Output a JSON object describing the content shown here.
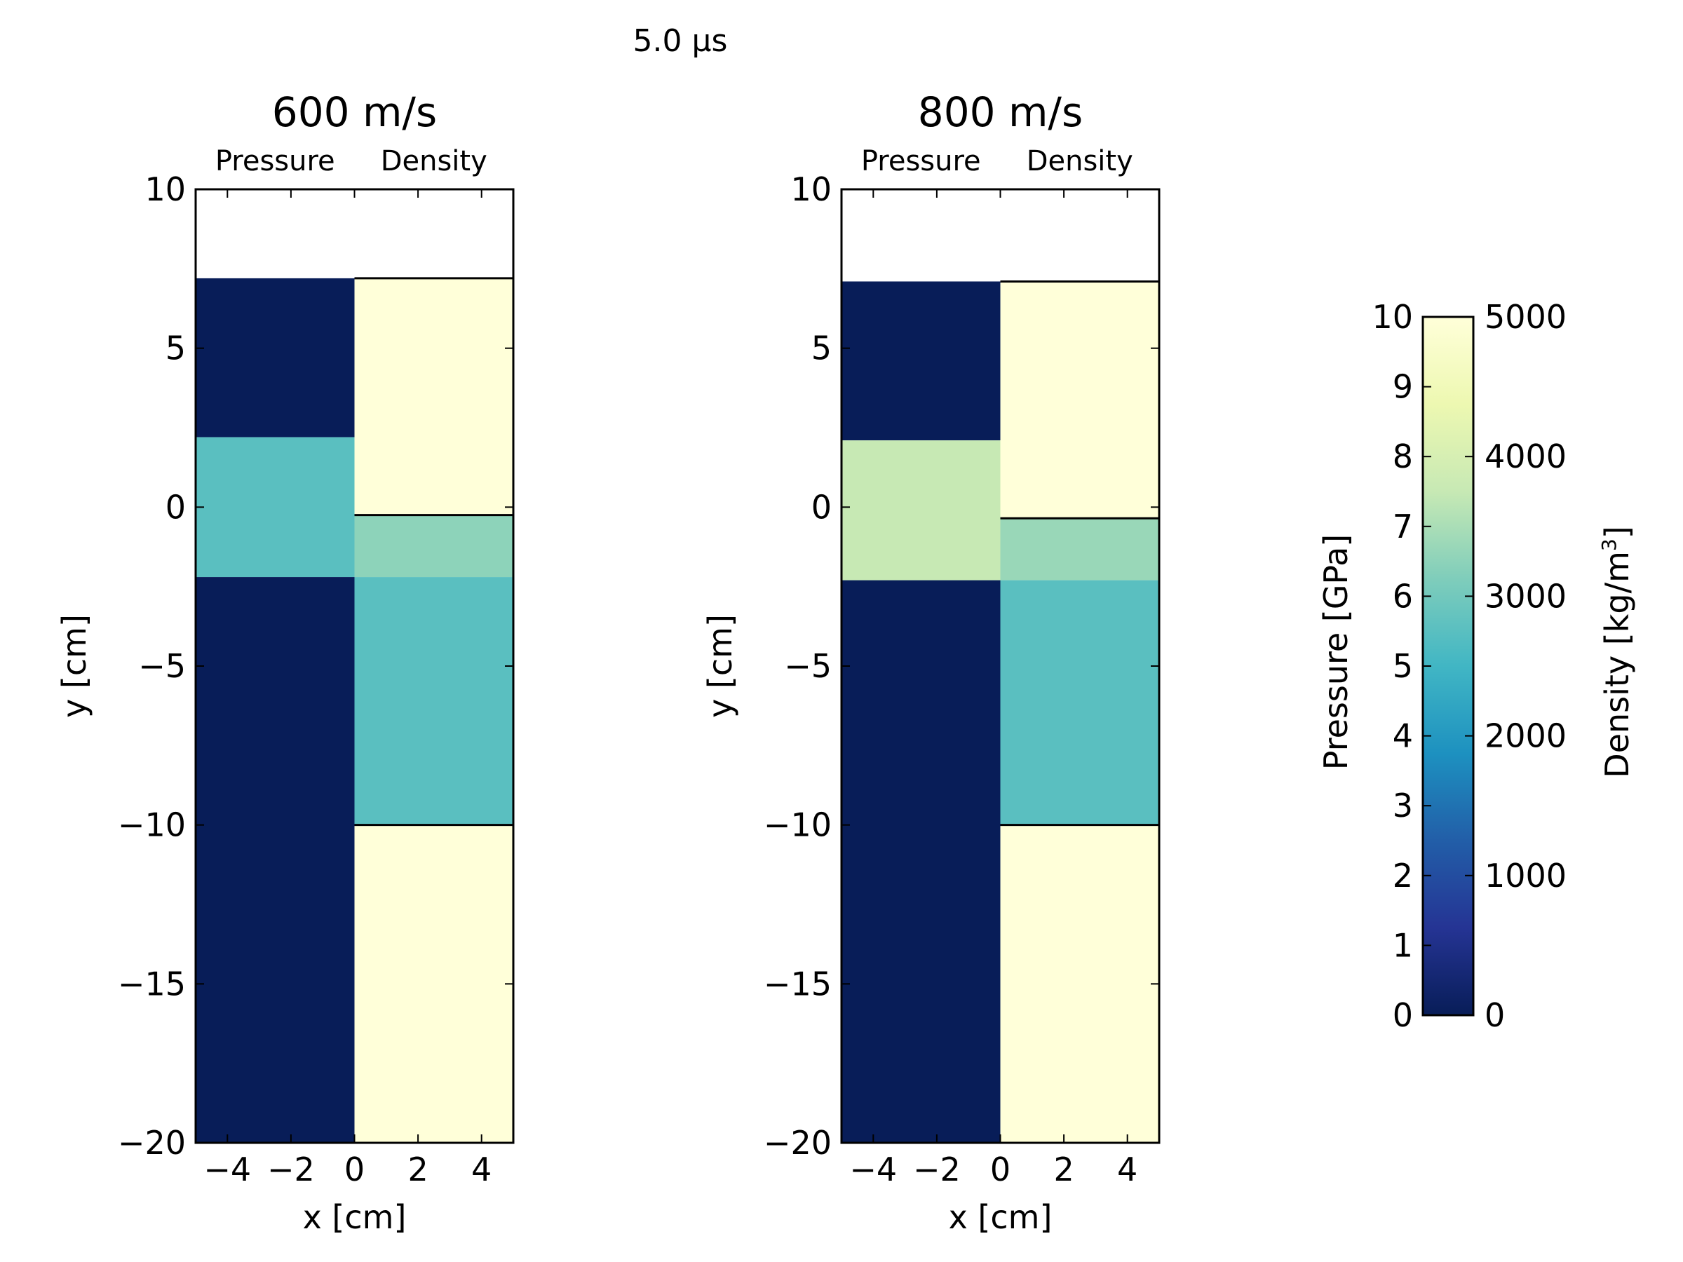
{
  "chart_data": {
    "type": "heatmap",
    "suptitle": "5.0 μs",
    "colormap": "YlGnBu_r",
    "colormap_stops": [
      "#081d58",
      "#253494",
      "#225ea8",
      "#1d91c0",
      "#41b6c4",
      "#7fcdbb",
      "#c7e9b4",
      "#edf8b1",
      "#ffffd9"
    ],
    "panels": [
      {
        "title": "600 m/s",
        "left_label": "Pressure",
        "right_label": "Density",
        "xlabel": "x [cm]",
        "ylabel": "y [cm]",
        "xlim": [
          -5,
          5
        ],
        "ylim": [
          -20,
          10
        ],
        "xticks": [
          -4,
          -2,
          0,
          2,
          4
        ],
        "xtick_labels": [
          "−4",
          "−2",
          "0",
          "2",
          "4"
        ],
        "yticks": [
          10,
          5,
          0,
          -5,
          -10,
          -15,
          -20
        ],
        "ytick_labels": [
          "10",
          "5",
          "0",
          "−5",
          "−10",
          "−15",
          "−20"
        ],
        "material_top": 7.2,
        "pressure_bands": [
          {
            "y0": 2.2,
            "y1": 7.2,
            "value": 0
          },
          {
            "y0": -2.2,
            "y1": 2.2,
            "value": 5.5
          },
          {
            "y0": -20,
            "y1": -2.2,
            "value": 0
          }
        ],
        "density_bands": [
          {
            "y0": -0.25,
            "y1": 7.2,
            "value": 5000
          },
          {
            "y0": -2.2,
            "y1": -0.25,
            "value": 3250
          },
          {
            "y0": -10,
            "y1": -2.2,
            "value": 2750
          },
          {
            "y0": -20,
            "y1": -10,
            "value": 5000
          }
        ],
        "density_boundaries": [
          7.2,
          -0.25,
          -10
        ]
      },
      {
        "title": "800 m/s",
        "left_label": "Pressure",
        "right_label": "Density",
        "xlabel": "x [cm]",
        "ylabel": "y [cm]",
        "xlim": [
          -5,
          5
        ],
        "ylim": [
          -20,
          10
        ],
        "xticks": [
          -4,
          -2,
          0,
          2,
          4
        ],
        "xtick_labels": [
          "−4",
          "−2",
          "0",
          "2",
          "4"
        ],
        "yticks": [
          10,
          5,
          0,
          -5,
          -10,
          -15,
          -20
        ],
        "ytick_labels": [
          "10",
          "5",
          "0",
          "−5",
          "−10",
          "−15",
          "−20"
        ],
        "material_top": 7.1,
        "pressure_bands": [
          {
            "y0": 2.1,
            "y1": 7.1,
            "value": 0
          },
          {
            "y0": -2.3,
            "y1": 2.1,
            "value": 7.5
          },
          {
            "y0": -20,
            "y1": -2.3,
            "value": 0
          }
        ],
        "density_bands": [
          {
            "y0": -0.35,
            "y1": 7.1,
            "value": 5000
          },
          {
            "y0": -2.3,
            "y1": -0.35,
            "value": 3350
          },
          {
            "y0": -10,
            "y1": -2.3,
            "value": 2750
          },
          {
            "y0": -20,
            "y1": -10,
            "value": 5000
          }
        ],
        "density_boundaries": [
          7.1,
          -0.35,
          -10
        ]
      }
    ],
    "colorbar": {
      "left_label": "Pressure [GPa]",
      "right_label_main": "Density [kg/m",
      "right_label_sup": "3",
      "right_label_end": "]",
      "pressure_range": [
        0,
        10
      ],
      "density_range": [
        0,
        5000
      ],
      "pressure_ticks": [
        0,
        1,
        2,
        3,
        4,
        5,
        6,
        7,
        8,
        9,
        10
      ],
      "pressure_tick_labels": [
        "0",
        "1",
        "2",
        "3",
        "4",
        "5",
        "6",
        "7",
        "8",
        "9",
        "10"
      ],
      "density_ticks": [
        0,
        1000,
        2000,
        3000,
        4000,
        5000
      ],
      "density_tick_labels": [
        "0",
        "1000",
        "2000",
        "3000",
        "4000",
        "5000"
      ]
    }
  }
}
